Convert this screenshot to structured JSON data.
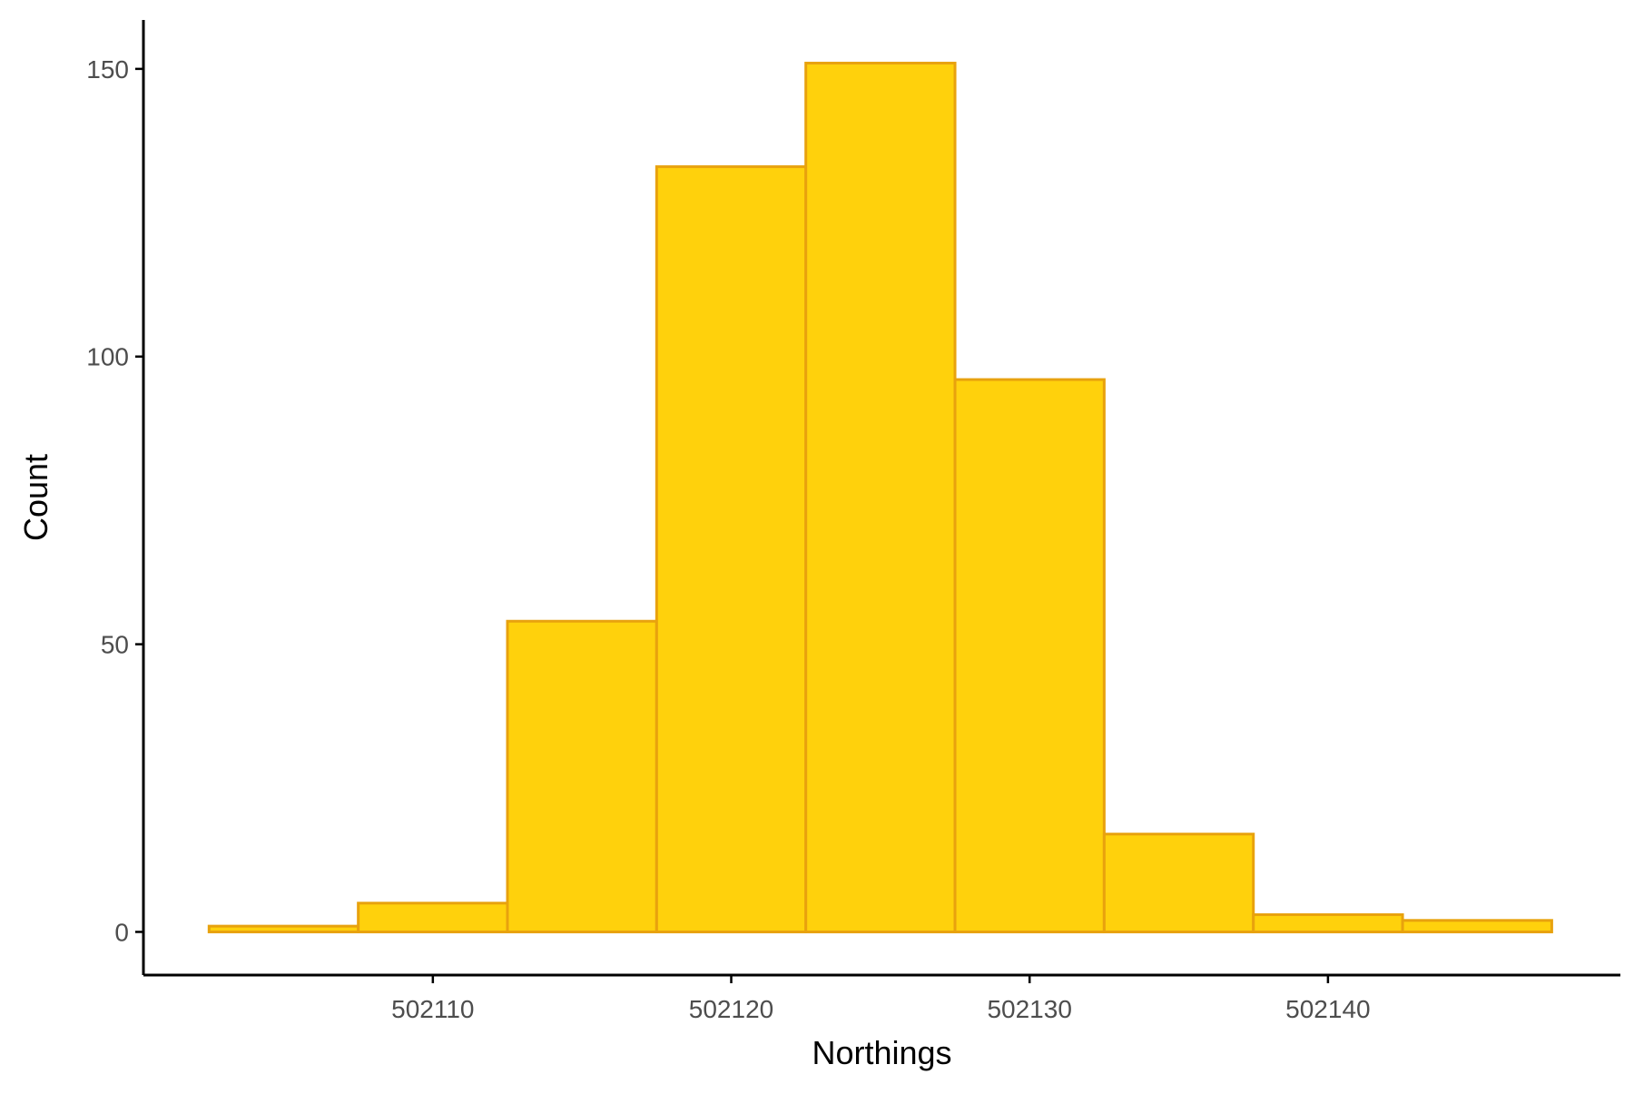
{
  "colors": {
    "bar_fill": "#ffd10c",
    "bar_stroke": "#e8a20e",
    "axis": "#000000",
    "tick_text": "#4d4d4d"
  },
  "chart_data": {
    "type": "bar",
    "histogram": true,
    "xlabel": "Northings",
    "ylabel": "Count",
    "bin_width": 5,
    "bins": [
      {
        "start": 502102.5,
        "end": 502107.5,
        "count": 1
      },
      {
        "start": 502107.5,
        "end": 502112.5,
        "count": 5
      },
      {
        "start": 502112.5,
        "end": 502117.5,
        "count": 54
      },
      {
        "start": 502117.5,
        "end": 502122.5,
        "count": 133
      },
      {
        "start": 502122.5,
        "end": 502127.5,
        "count": 151
      },
      {
        "start": 502127.5,
        "end": 502132.5,
        "count": 96
      },
      {
        "start": 502132.5,
        "end": 502137.5,
        "count": 17
      },
      {
        "start": 502137.5,
        "end": 502142.5,
        "count": 3
      },
      {
        "start": 502142.5,
        "end": 502147.5,
        "count": 2
      }
    ],
    "xlim": [
      502100.3,
      502149.8
    ],
    "ylim": [
      -7.5,
      158.5
    ],
    "x_ticks": [
      502110,
      502120,
      502130,
      502140
    ],
    "y_ticks": [
      0,
      50,
      100,
      150
    ],
    "grid": false,
    "legend": "none"
  }
}
